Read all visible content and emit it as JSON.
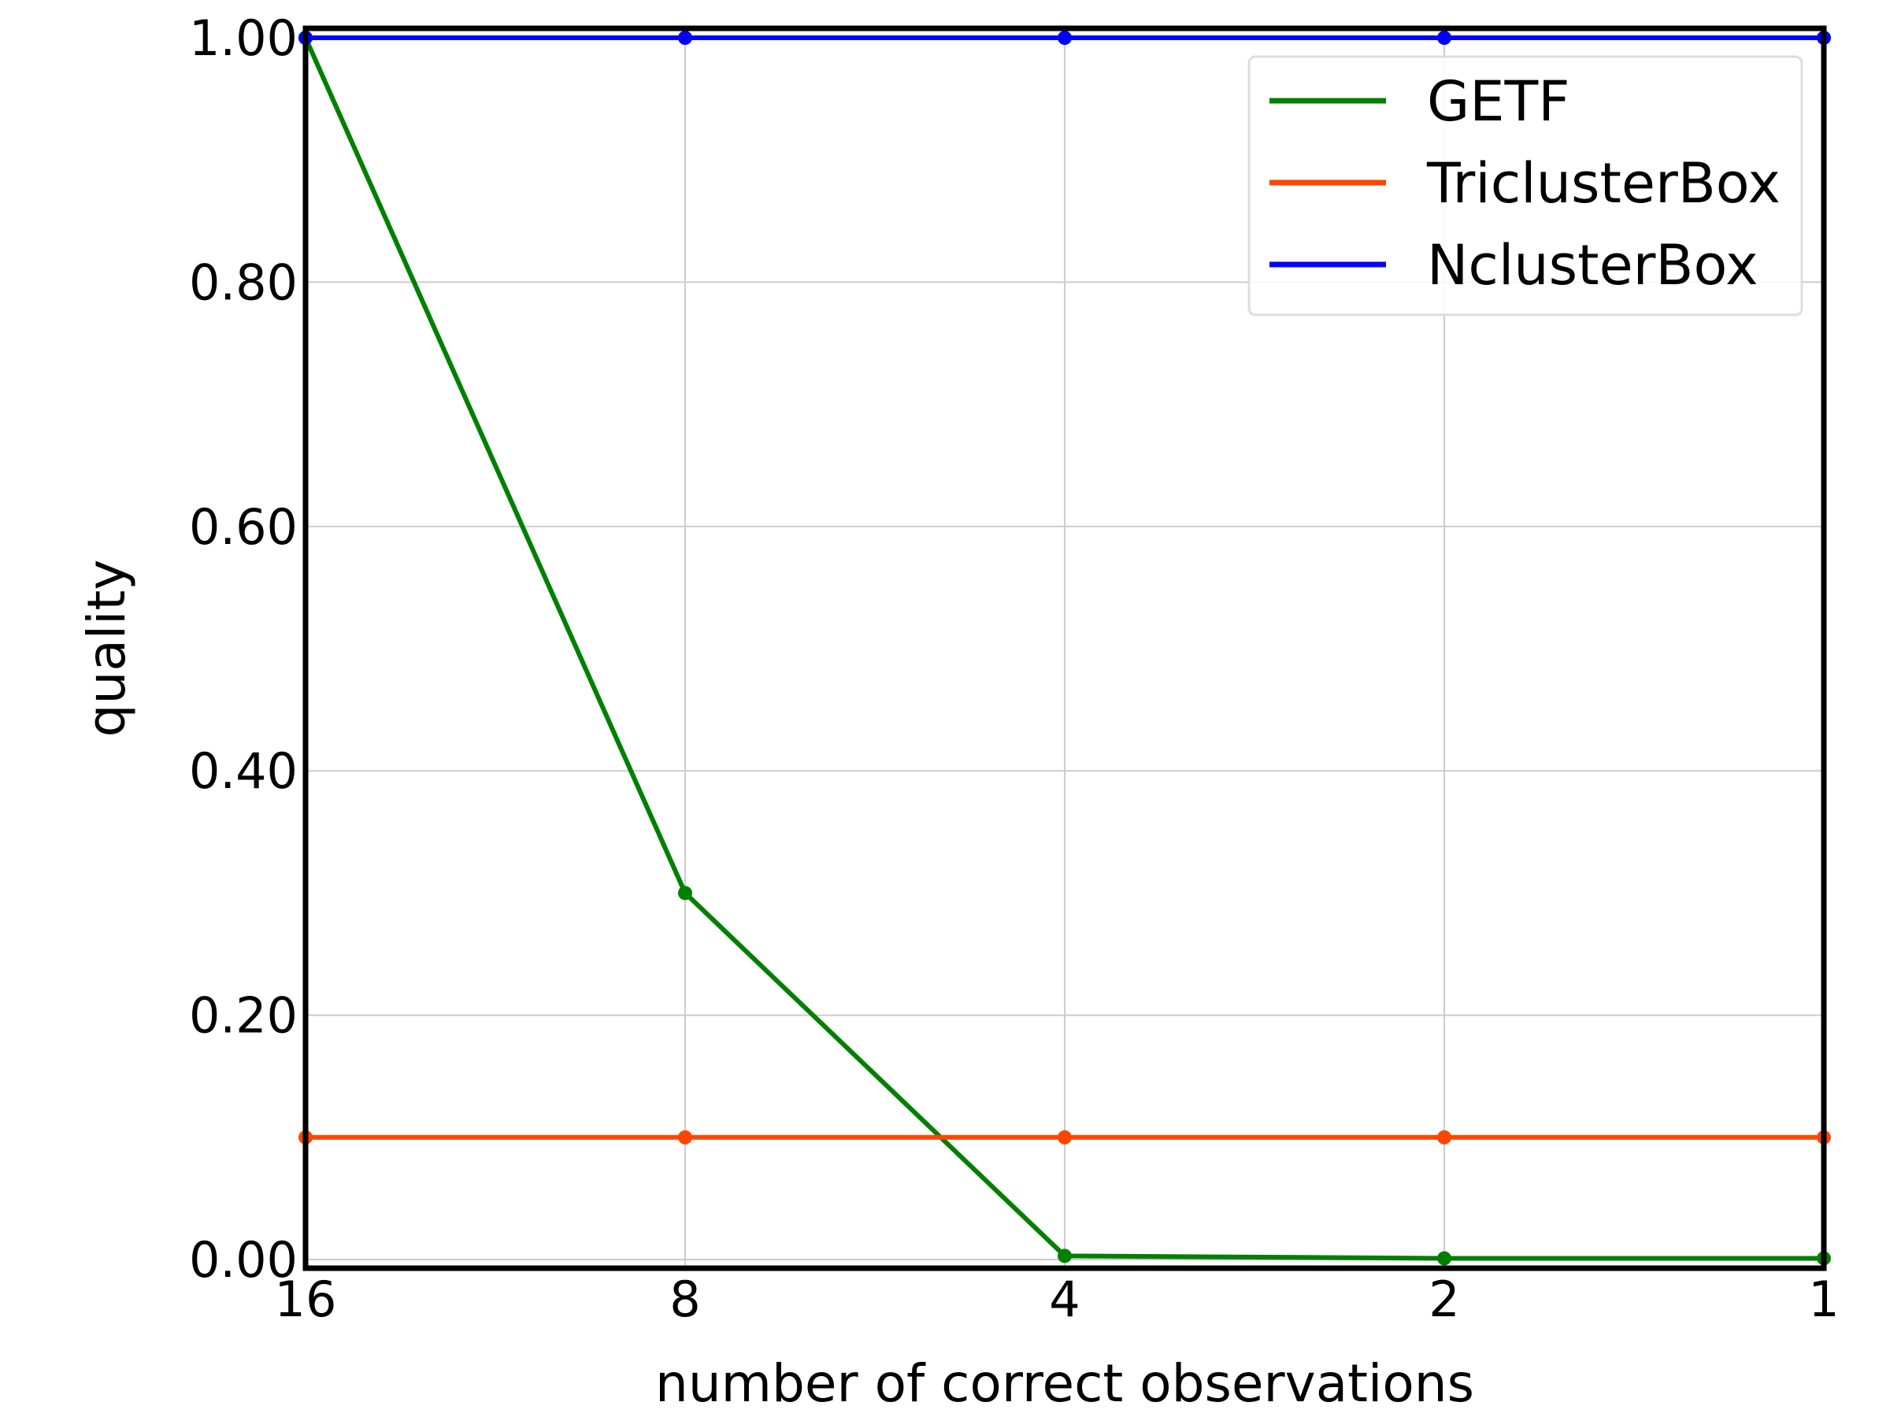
{
  "chart_data": {
    "type": "line",
    "title": "",
    "xlabel": "number of correct observations",
    "ylabel": "quality",
    "x": [
      16,
      8,
      4,
      2,
      1
    ],
    "x_tick_labels": [
      "16",
      "8",
      "4",
      "2",
      "1"
    ],
    "x_scale": "log2, reversed",
    "y_tick_labels": [
      "0.00",
      "0.20",
      "0.40",
      "0.60",
      "0.80",
      "1.00"
    ],
    "y_ticks": [
      0.0,
      0.2,
      0.4,
      0.6,
      0.8,
      1.0
    ],
    "ylim": [
      0.0,
      1.0
    ],
    "grid": true,
    "legend_position": "top-right",
    "series": [
      {
        "name": "GETF",
        "color": "#008000",
        "values": [
          1.0,
          0.3,
          0.003,
          0.001,
          0.001
        ]
      },
      {
        "name": "TriclusterBox",
        "color": "#ff4500",
        "values": [
          0.1,
          0.1,
          0.1,
          0.1,
          0.1
        ]
      },
      {
        "name": "NclusterBox",
        "color": "#0000ff",
        "values": [
          1.0,
          1.0,
          1.0,
          1.0,
          1.0
        ]
      }
    ]
  }
}
